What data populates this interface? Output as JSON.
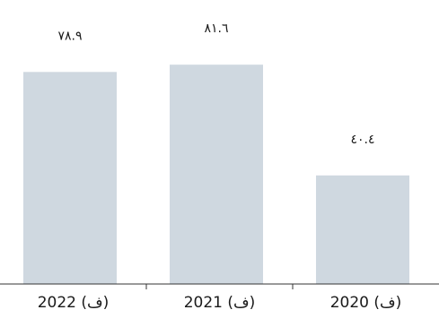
{
  "chart_data": {
    "type": "bar",
    "categories": [
      "2022 (ف)",
      "2021 (ف)",
      "2020 (ف)"
    ],
    "values": [
      78.9,
      81.6,
      40.4
    ],
    "data_labels": [
      "٧٨.٩",
      "٨١.٦",
      "٤٠.٤"
    ],
    "ylim": [
      0,
      100
    ],
    "grid": false,
    "legend": "none",
    "bar_color": "#cfd8e0",
    "axis_color": "#333333",
    "text_color": "#1a1a1a"
  }
}
